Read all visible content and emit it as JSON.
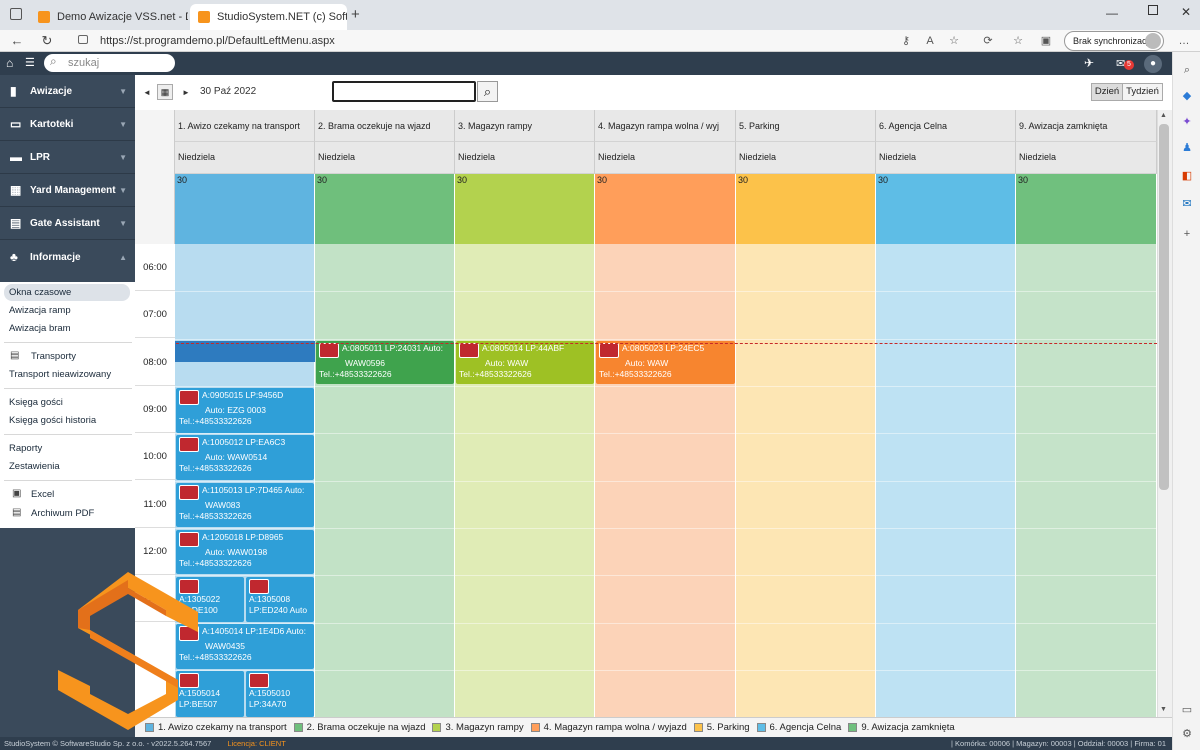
{
  "browser": {
    "tabs": [
      {
        "title": "Demo Awizacje VSS.net - Demo",
        "active": false
      },
      {
        "title": "StudioSystem.NET (c) SoftwareSt",
        "active": true
      }
    ],
    "url": "https://st.programdemo.pl/DefaultLeftMenu.aspx",
    "sync_label": "Brak synchronizacji"
  },
  "app": {
    "search_placeholder": "szukaj",
    "notification_count": "5",
    "menu": [
      {
        "label": "Awizacje",
        "icon": "document-icon"
      },
      {
        "label": "Kartoteki",
        "icon": "folder-icon"
      },
      {
        "label": "LPR",
        "icon": "truck-icon"
      },
      {
        "label": "Yard Management",
        "icon": "grid-icon"
      },
      {
        "label": "Gate Assistant",
        "icon": "gate-icon"
      },
      {
        "label": "Informacje",
        "icon": "sitemap-icon"
      }
    ],
    "submenu": {
      "okna": "Okna czasowe",
      "awizacja_ramp": "Awizacja ramp",
      "awizacja_bram": "Awizacja bram",
      "transporty": "Transporty",
      "transport_nieawizowany": "Transport nieawizowany",
      "ksiega_gosci": "Księga gości",
      "ksiega_gosci_historia": "Księga gości historia",
      "raporty": "Raporty",
      "zestawienia": "Zestawienia",
      "excel": "Excel",
      "archiwum": "Archiwum PDF"
    }
  },
  "toolbar": {
    "date": "30 Paź 2022",
    "view_day": "Dzień",
    "view_week": "Tydzień"
  },
  "columns": [
    {
      "name": "1. Awizo czekamy na transport",
      "day": "Niedziela",
      "num": "30",
      "color": "#5fb4e0",
      "light": "#b8dcf0"
    },
    {
      "name": "2. Brama oczekuje na wjazd",
      "day": "Niedziela",
      "num": "30",
      "color": "#6fbf7c",
      "light": "#c2e2c6"
    },
    {
      "name": "3. Magazyn rampy",
      "day": "Niedziela",
      "num": "30",
      "color": "#b3d24e",
      "light": "#e0ecb6"
    },
    {
      "name": "4. Magazyn rampa wolna / wyj",
      "day": "Niedziela",
      "num": "30",
      "color": "#ff9e5a",
      "light": "#fcd3b8"
    },
    {
      "name": "5. Parking",
      "day": "Niedziela",
      "num": "30",
      "color": "#fcc24a",
      "light": "#fde6b4"
    },
    {
      "name": "6. Agencja Celna",
      "day": "Niedziela",
      "num": "30",
      "color": "#5ebde6",
      "light": "#bee2f3"
    },
    {
      "name": "9. Awizacja zamknięta",
      "day": "Niedziela",
      "num": "30",
      "color": "#70c07e",
      "light": "#c5e3c9"
    }
  ],
  "times": [
    "06:00",
    "07:00",
    "08:00",
    "09:00",
    "10:00",
    "11:00",
    "12:00",
    "13:00"
  ],
  "appointments": {
    "a1": {
      "l1": "A:0805011 LP:24031 Auto:",
      "l2": "WAW0596",
      "l3": "Tel.:+48533322626"
    },
    "a2": {
      "l1": "A:0805014 LP:44ABF",
      "l2": "Auto: WAW",
      "l3": "Tel.:+48533322626"
    },
    "a3": {
      "l1": "A:0805023 LP:24EC5",
      "l2": "Auto: WAW",
      "l3": "Tel.:+48533322626"
    },
    "b1": {
      "l1": "A:0905015 LP:9456D",
      "l2": "Auto: EZG 0003",
      "l3": "Tel.:+48533322626"
    },
    "b2": {
      "l1": "A:1005012 LP:EA6C3",
      "l2": "Auto: WAW0514",
      "l3": "Tel.:+48533322626"
    },
    "b3": {
      "l1": "A:1105013 LP:7D465 Auto:",
      "l2": "WAW083",
      "l3": "Tel.:+48533322626"
    },
    "b4": {
      "l1": "A:1205018 LP:D8965",
      "l2": "Auto: WAW0198",
      "l3": "Tel.:+48533322626"
    },
    "b5": {
      "l1": "A:1305022",
      "l2": "LP:DE100"
    },
    "b6": {
      "l1": "A:1305008",
      "l2": "LP:ED240 Auto"
    },
    "b7": {
      "l1": "A:1405014 LP:1E4D6 Auto:",
      "l2": "WAW0435",
      "l3": "Tel.:+48533322626"
    },
    "b8": {
      "l1": "A:1505014",
      "l2": "LP:BE507"
    },
    "b9": {
      "l1": "A:1505010",
      "l2": "LP:34A70"
    }
  },
  "legend": [
    {
      "label": "1. Awizo czekamy na transport",
      "color": "#5fb4e0"
    },
    {
      "label": "2. Brama oczekuje na wjazd",
      "color": "#6fbf7c"
    },
    {
      "label": "3. Magazyn rampy",
      "color": "#b3d24e"
    },
    {
      "label": "4. Magazyn rampa wolna / wyjazd",
      "color": "#ff9e5a"
    },
    {
      "label": "5. Parking",
      "color": "#fcc24a"
    },
    {
      "label": "6. Agencja Celna",
      "color": "#5ebde6"
    },
    {
      "label": "9. Awizacja zamknięta",
      "color": "#70c07e"
    }
  ],
  "footer": {
    "left": "StudioSystem © SoftwareStudio Sp. z o.o. - v2022.5.264.7567",
    "license": "Licencja: CLIENT",
    "right": "| Komórka: 00006 | Magazyn: 00003 | Oddział: 00003 | Firma: 01"
  },
  "colors": {
    "accent": "#f7941d",
    "nav_bg": "#3a4a5b",
    "top_bg": "#2f3e4e"
  }
}
